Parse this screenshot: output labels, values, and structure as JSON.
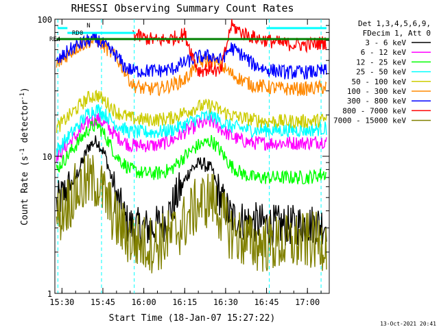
{
  "chart_data": {
    "type": "line",
    "title": "RHESSI Observing Summary Count Rates",
    "xlabel": "Start Time (18-Jan-07 15:27:22)",
    "ylabel_main": "Count Rate (s",
    "ylabel_sup": "-1",
    "ylabel_tail": " detector",
    "ylabel_sup2": "-1",
    "ylabel_end": ")",
    "y_scale": "log",
    "ylim": [
      1,
      100
    ],
    "xlim_min": [
      927.4,
      1028
    ],
    "x_ticks": [
      {
        "label": "15:30",
        "min": 930
      },
      {
        "label": "15:45",
        "min": 945
      },
      {
        "label": "16:00",
        "min": 960
      },
      {
        "label": "16:15",
        "min": 975
      },
      {
        "label": "16:30",
        "min": 990
      },
      {
        "label": "16:45",
        "min": 1005
      },
      {
        "label": "17:00",
        "min": 1020
      }
    ],
    "y_ticks": [
      {
        "label": "1",
        "value": 1
      },
      {
        "label": "10",
        "value": 10
      },
      {
        "label": "100",
        "value": 100
      }
    ],
    "legend_header": [
      "Det 1,3,4,5,6,9,",
      "FDecim 1, Att 0"
    ],
    "legend_placement": "right",
    "series": [
      {
        "name": "3 - 6 keV",
        "color": "#000000",
        "points": [
          [
            928,
            4.5
          ],
          [
            935,
            7
          ],
          [
            940,
            12
          ],
          [
            943,
            13
          ],
          [
            946,
            10
          ],
          [
            950,
            5
          ],
          [
            954,
            3.2
          ],
          [
            958,
            3
          ],
          [
            963,
            3
          ],
          [
            968,
            3.4
          ],
          [
            972,
            5
          ],
          [
            977,
            8
          ],
          [
            981,
            9
          ],
          [
            985,
            8
          ],
          [
            988,
            5
          ],
          [
            992,
            3.6
          ],
          [
            996,
            3.4
          ],
          [
            1000,
            3.3
          ],
          [
            1005,
            3.2
          ],
          [
            1012,
            3.1
          ],
          [
            1018,
            3.2
          ],
          [
            1027,
            3.2
          ]
        ]
      },
      {
        "name": "6 - 12 keV",
        "color": "#ff00ff",
        "points": [
          [
            928,
            10
          ],
          [
            935,
            14
          ],
          [
            940,
            18
          ],
          [
            943,
            19
          ],
          [
            946,
            17
          ],
          [
            950,
            14
          ],
          [
            955,
            12
          ],
          [
            960,
            12
          ],
          [
            965,
            12
          ],
          [
            970,
            13
          ],
          [
            975,
            15
          ],
          [
            980,
            17
          ],
          [
            985,
            18
          ],
          [
            988,
            16
          ],
          [
            992,
            14
          ],
          [
            996,
            13
          ],
          [
            1000,
            12.5
          ],
          [
            1005,
            12.5
          ],
          [
            1012,
            12.5
          ],
          [
            1020,
            12.5
          ],
          [
            1027,
            13
          ]
        ]
      },
      {
        "name": "12 - 25 keV",
        "color": "#00ff00",
        "points": [
          [
            928,
            8
          ],
          [
            935,
            12
          ],
          [
            940,
            16
          ],
          [
            943,
            17
          ],
          [
            946,
            14
          ],
          [
            950,
            10
          ],
          [
            955,
            8
          ],
          [
            960,
            7.5
          ],
          [
            965,
            7.5
          ],
          [
            970,
            8
          ],
          [
            975,
            10
          ],
          [
            980,
            12
          ],
          [
            985,
            13
          ],
          [
            988,
            11
          ],
          [
            992,
            8.5
          ],
          [
            996,
            7.5
          ],
          [
            1000,
            7
          ],
          [
            1005,
            7
          ],
          [
            1012,
            7
          ],
          [
            1020,
            7
          ],
          [
            1027,
            7.5
          ]
        ]
      },
      {
        "name": "25 - 50 keV",
        "color": "#00ffff",
        "points": [
          [
            928,
            11
          ],
          [
            935,
            16
          ],
          [
            940,
            21
          ],
          [
            943,
            22
          ],
          [
            946,
            20
          ],
          [
            950,
            17
          ],
          [
            955,
            15
          ],
          [
            960,
            15
          ],
          [
            965,
            15
          ],
          [
            970,
            15.5
          ],
          [
            975,
            17
          ],
          [
            980,
            19
          ],
          [
            985,
            20
          ],
          [
            988,
            18
          ],
          [
            992,
            16.5
          ],
          [
            996,
            16
          ],
          [
            1000,
            15.5
          ],
          [
            1005,
            15.5
          ],
          [
            1012,
            15.5
          ],
          [
            1020,
            15.5
          ],
          [
            1027,
            16
          ]
        ]
      },
      {
        "name": "50 - 100 keV",
        "color": "#cccc00",
        "points": [
          [
            928,
            16
          ],
          [
            935,
            22
          ],
          [
            940,
            27
          ],
          [
            943,
            28
          ],
          [
            946,
            25
          ],
          [
            950,
            21
          ],
          [
            955,
            19
          ],
          [
            960,
            18.5
          ],
          [
            965,
            18.5
          ],
          [
            970,
            19
          ],
          [
            975,
            21
          ],
          [
            980,
            23
          ],
          [
            985,
            23.5
          ],
          [
            988,
            21.5
          ],
          [
            992,
            20
          ],
          [
            996,
            19
          ],
          [
            1000,
            18.5
          ],
          [
            1005,
            18
          ],
          [
            1012,
            18
          ],
          [
            1020,
            18
          ],
          [
            1027,
            18.5
          ]
        ]
      },
      {
        "name": "100 - 300 keV",
        "color": "#ff8800",
        "points": [
          [
            928,
            46
          ],
          [
            932,
            55
          ],
          [
            936,
            63
          ],
          [
            940,
            69
          ],
          [
            943,
            70
          ],
          [
            946,
            62
          ],
          [
            950,
            52
          ],
          [
            953,
            42
          ],
          [
            956,
            33
          ],
          [
            960,
            31
          ],
          [
            965,
            31
          ],
          [
            970,
            33
          ],
          [
            975,
            36
          ],
          [
            980,
            48
          ],
          [
            985,
            50
          ],
          [
            988,
            46
          ],
          [
            992,
            40
          ],
          [
            996,
            36
          ],
          [
            1000,
            33
          ],
          [
            1005,
            32
          ],
          [
            1012,
            31
          ],
          [
            1020,
            31
          ],
          [
            1027,
            32
          ]
        ]
      },
      {
        "name": "300 - 800 keV",
        "color": "#0000ff",
        "points": [
          [
            928,
            48
          ],
          [
            932,
            58
          ],
          [
            936,
            65
          ],
          [
            940,
            70
          ],
          [
            943,
            71
          ],
          [
            946,
            63
          ],
          [
            950,
            54
          ],
          [
            953,
            45
          ],
          [
            956,
            42
          ],
          [
            960,
            42
          ],
          [
            965,
            42
          ],
          [
            970,
            43
          ],
          [
            975,
            48
          ],
          [
            980,
            53
          ],
          [
            985,
            54
          ],
          [
            988,
            50
          ],
          [
            992,
            62
          ],
          [
            996,
            55
          ],
          [
            1000,
            47
          ],
          [
            1005,
            43
          ],
          [
            1012,
            41
          ],
          [
            1020,
            41
          ],
          [
            1027,
            42
          ]
        ]
      },
      {
        "name": "800 - 7000 keV",
        "color": "#ff0000",
        "points": [
          [
            956,
            78
          ],
          [
            960,
            73
          ],
          [
            965,
            70
          ],
          [
            970,
            72
          ],
          [
            975,
            78
          ],
          [
            980,
            42
          ],
          [
            985,
            44
          ],
          [
            988,
            40
          ],
          [
            992,
            90
          ],
          [
            996,
            80
          ],
          [
            1000,
            74
          ],
          [
            1005,
            70
          ],
          [
            1012,
            66
          ],
          [
            1020,
            65
          ],
          [
            1027,
            68
          ]
        ]
      },
      {
        "name": "7000 - 15000 keV",
        "color": "#808000",
        "points": [
          [
            928,
            3.5
          ],
          [
            935,
            5.5
          ],
          [
            940,
            6.5
          ],
          [
            943,
            6.5
          ],
          [
            946,
            5
          ],
          [
            950,
            3.3
          ],
          [
            955,
            2.5
          ],
          [
            960,
            2.3
          ],
          [
            965,
            2.3
          ],
          [
            970,
            2.6
          ],
          [
            975,
            3.3
          ],
          [
            980,
            4.5
          ],
          [
            985,
            5
          ],
          [
            988,
            3.8
          ],
          [
            992,
            2.8
          ],
          [
            996,
            2.5
          ],
          [
            1000,
            2.3
          ],
          [
            1005,
            2.3
          ],
          [
            1012,
            2.3
          ],
          [
            1020,
            2.4
          ],
          [
            1027,
            2.4
          ]
        ]
      }
    ],
    "flags": [
      {
        "name": "RD0",
        "y": 88,
        "start": 932,
        "end": 957,
        "color": "#00ffff"
      },
      {
        "name": "RE4",
        "y": 72,
        "start": 928,
        "end": 1028,
        "color": "#008000"
      },
      {
        "name": "N",
        "y": 98,
        "start": 936,
        "end": 937,
        "color": "#00ffff"
      }
    ],
    "vertical_lines_min": [
      928.5,
      944.5,
      956.5,
      1006,
      1025
    ]
  },
  "footer_timestamp": "13-Oct-2021 20:41"
}
